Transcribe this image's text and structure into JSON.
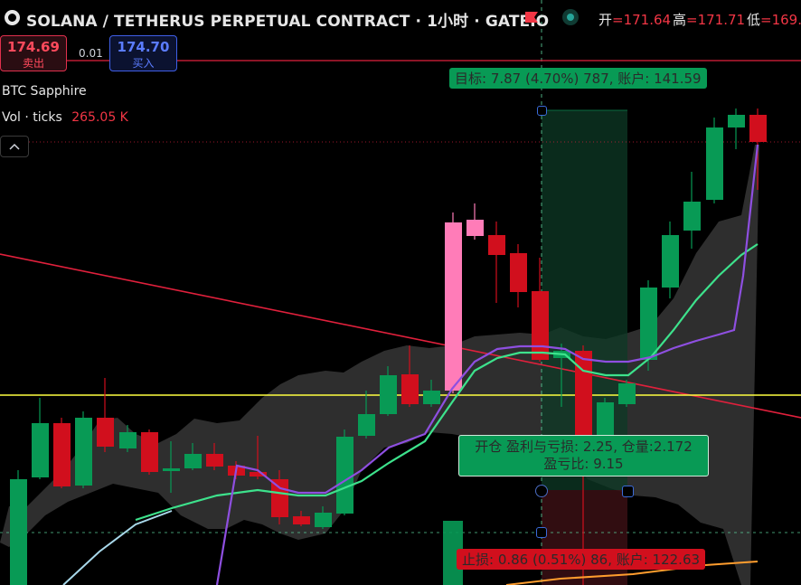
{
  "header": {
    "title": "SOLANA / TETHERUS PERPETUAL CONTRACT · 1小时 · GATEIO",
    "ohlc": [
      {
        "label": "开",
        "value": "=171.64"
      },
      {
        "label": "高",
        "value": "=171.71"
      },
      {
        "label": "低",
        "value": "=169."
      }
    ]
  },
  "trade": {
    "sell_price": "174.69",
    "sell_label": "卖出",
    "spread": "0.01",
    "buy_price": "174.70",
    "buy_label": "买入"
  },
  "legend": {
    "indicator_name": "BTC Sapphire",
    "volume_label": "Vol · ticks",
    "volume_value": "265.05 K"
  },
  "position_tool": {
    "target_label": "目标: 7.87 (4.70%) 787, 账户: 141.59",
    "open_line1": "开仓 盈利与亏损: 2.25, 仓量:2.172",
    "open_line2": "盈亏比: 9.15",
    "stop_label": "止损: 0.86 (0.51%) 86, 账户: 122.63"
  },
  "colors": {
    "up": "#089a55",
    "down": "#d10f1d",
    "highlight_up": "#ff7cb8",
    "ma_green": "#3de28c",
    "ma_purple": "#8e4fe0",
    "trend_red": "#e0203c",
    "level_yellow": "#ffff40"
  },
  "icons": [
    "logo-icon",
    "flag-icon",
    "status-dot-icon",
    "chevron-up-icon"
  ]
}
